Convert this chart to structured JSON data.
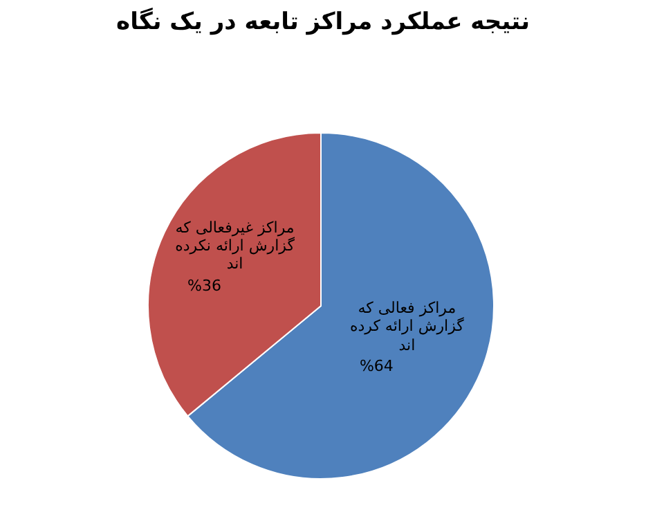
{
  "chart_data": {
    "type": "pie",
    "title": "نتیجه عملکرد مراکز تابعه در یک نگاه",
    "categories": [
      "مراکز فعالی که گزارش ارائه کرده اند",
      "مراکز غیرفعالی که گزارش ارائه نکرده اند"
    ],
    "values": [
      64,
      36
    ],
    "value_labels": [
      "%64",
      "%36"
    ],
    "colors": [
      "#4f81bd",
      "#c0504d"
    ]
  }
}
